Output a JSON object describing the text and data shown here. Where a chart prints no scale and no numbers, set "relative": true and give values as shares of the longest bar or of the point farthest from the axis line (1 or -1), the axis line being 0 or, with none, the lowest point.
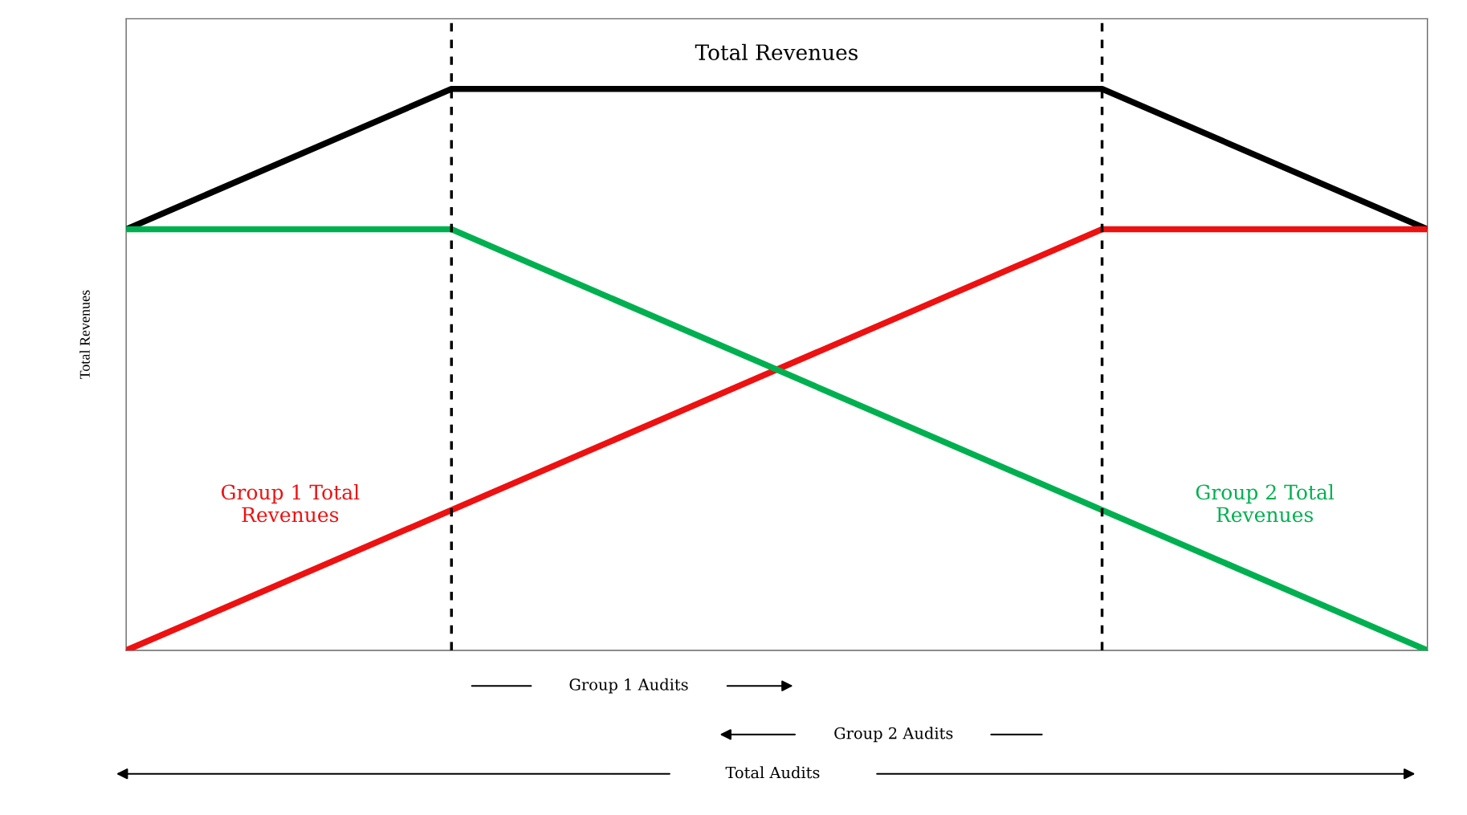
{
  "chart_data": {
    "type": "line",
    "ylabel": "Total Revenues",
    "categories": [
      null,
      null,
      null,
      null,
      null
    ],
    "relative": true,
    "legend": false,
    "marker": "none",
    "line_style": "solid",
    "series": [
      {
        "name": "Total Revenues",
        "color": "#000000",
        "values": [
          0.75,
          1.0,
          1.0,
          1.0,
          0.75
        ]
      },
      {
        "name": "Group 1 Total Revenues",
        "color": "#ee1111",
        "values": [
          0,
          0.25,
          0.5,
          0.75,
          0.75
        ]
      },
      {
        "name": "Group 2 Total Revenues",
        "color": "#00b050",
        "values": [
          0.75,
          0.75,
          0.5,
          0.25,
          0
        ]
      }
    ],
    "annotations": [
      "Group 1 Audits",
      "Group 2 Audits",
      "Total Audits"
    ]
  }
}
